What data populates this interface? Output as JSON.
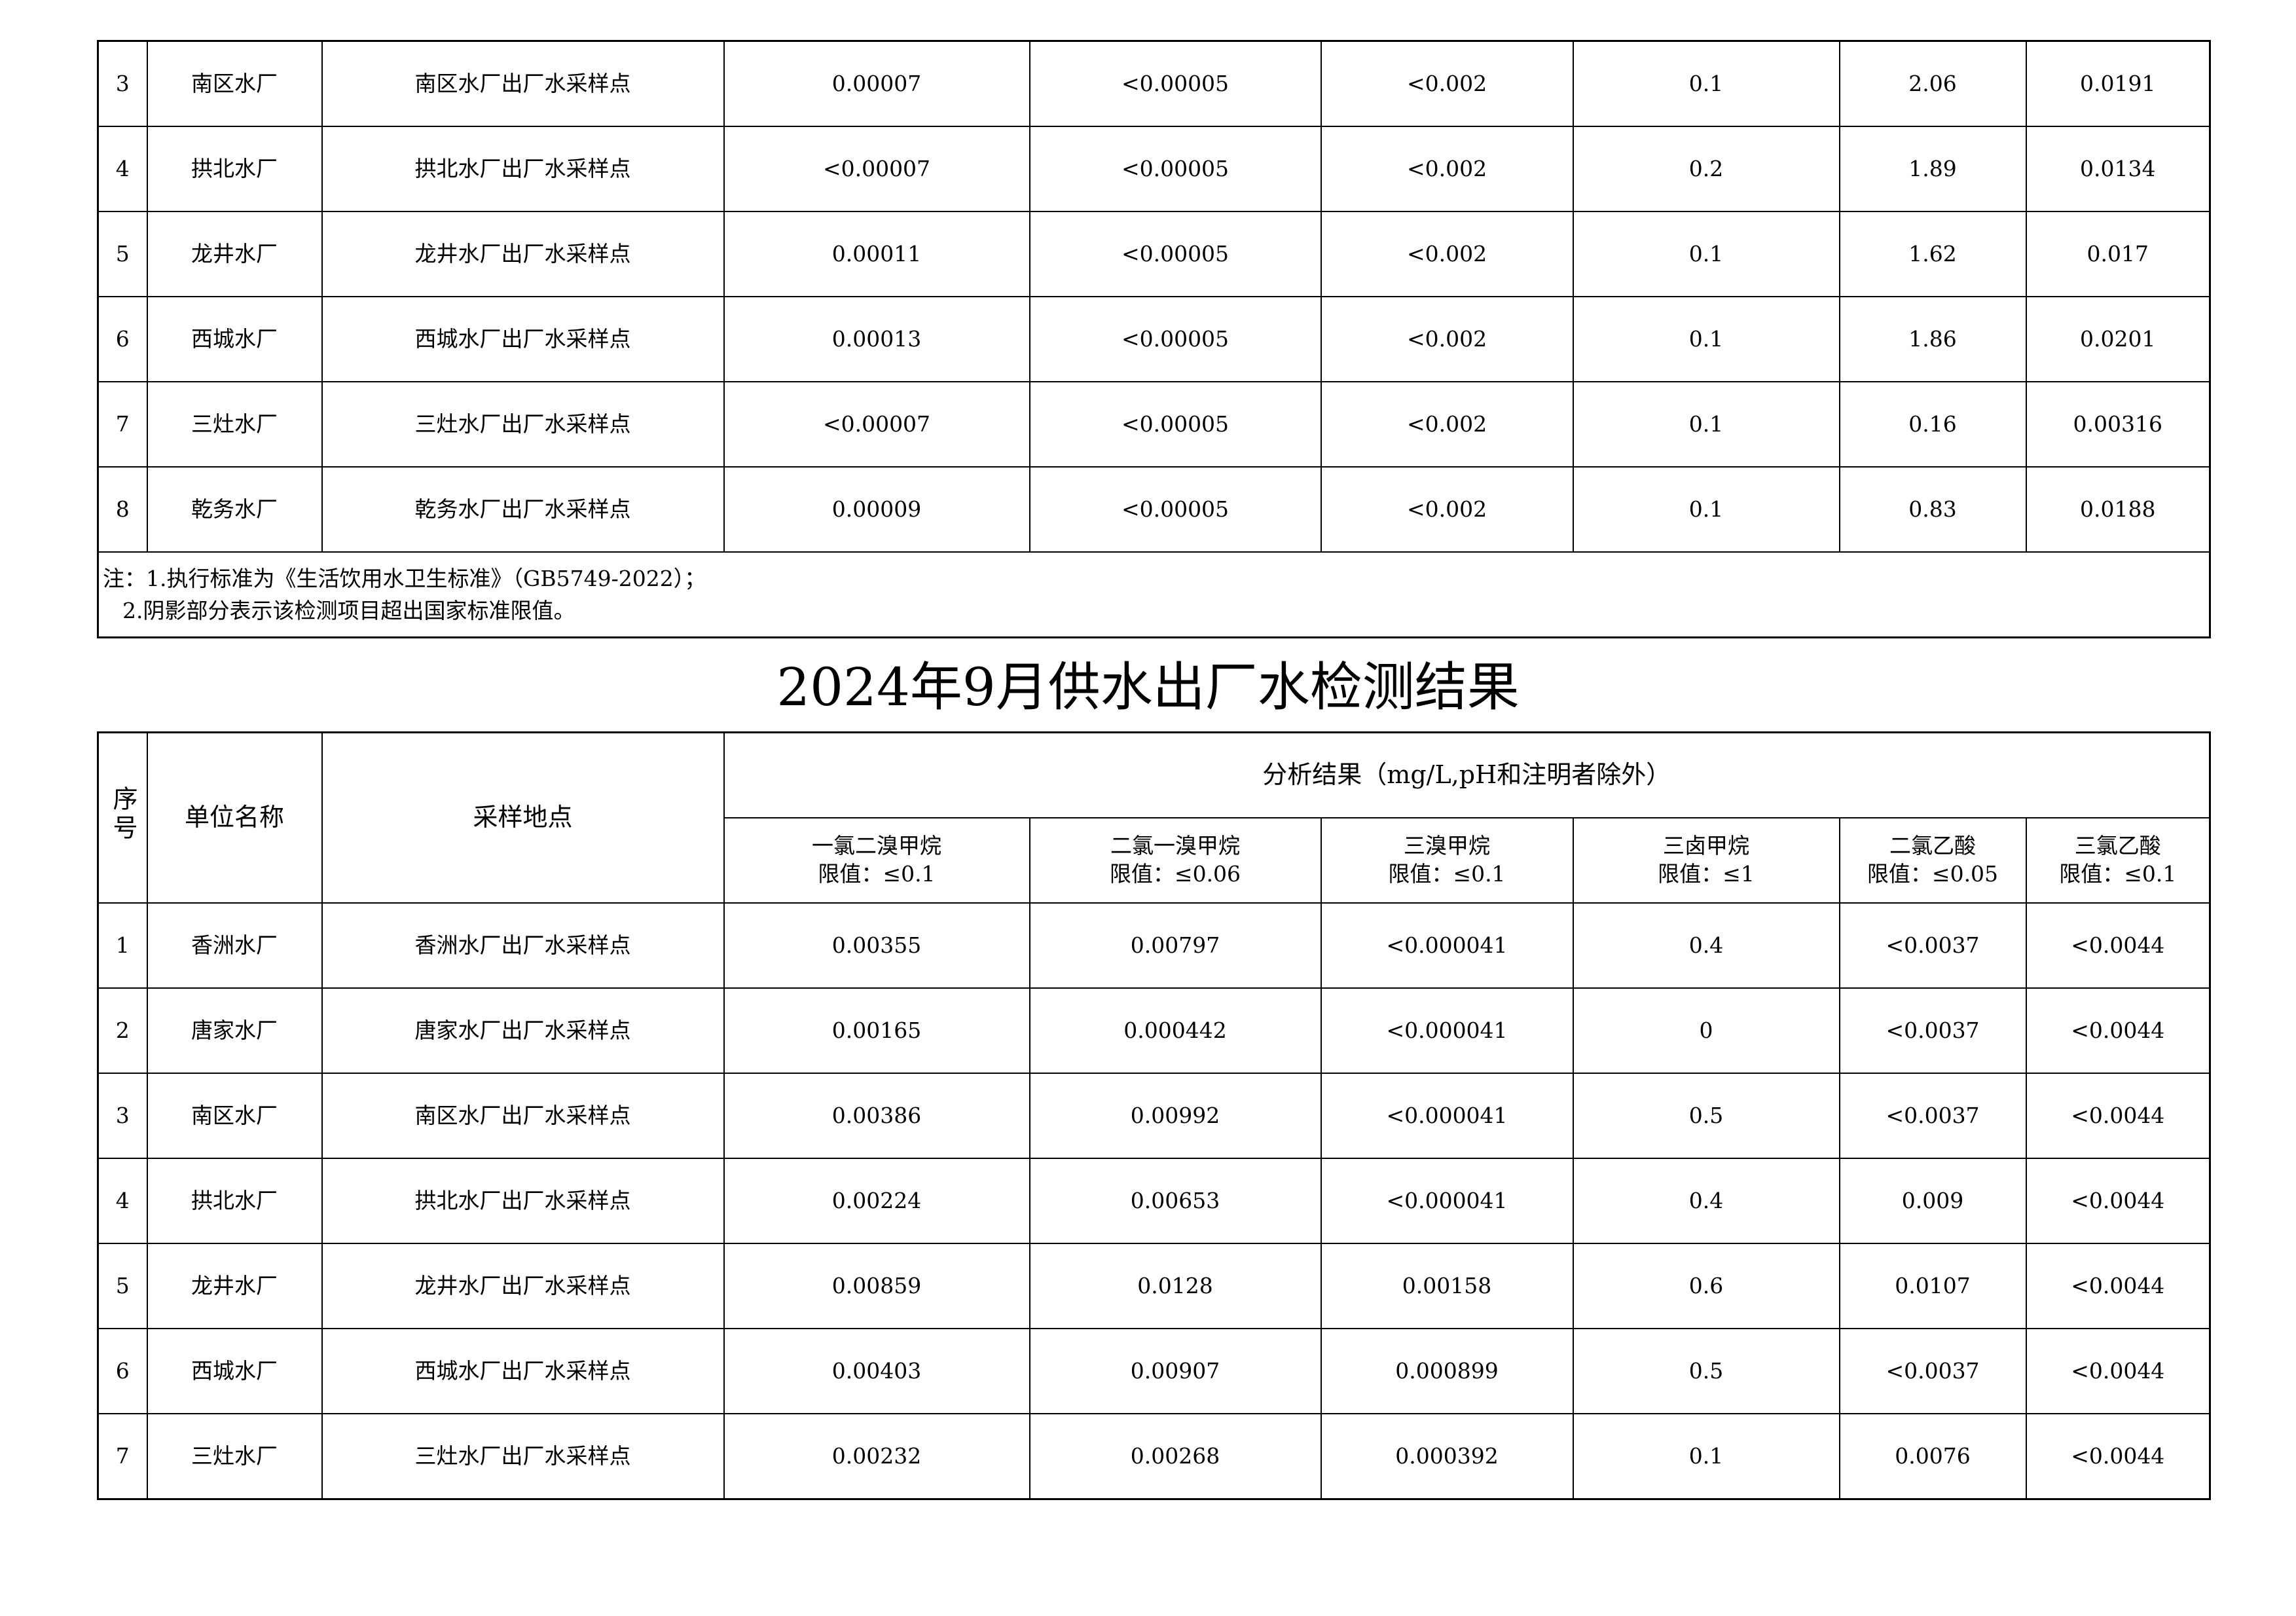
{
  "table_prev": {
    "rows": [
      [
        "3",
        "南区水厂",
        "南区水厂出厂水采样点",
        "0.00007",
        "<0.00005",
        "<0.002",
        "0.1",
        "2.06",
        "0.0191"
      ],
      [
        "4",
        "拱北水厂",
        "拱北水厂出厂水采样点",
        "<0.00007",
        "<0.00005",
        "<0.002",
        "0.2",
        "1.89",
        "0.0134"
      ],
      [
        "5",
        "龙井水厂",
        "龙井水厂出厂水采样点",
        "0.00011",
        "<0.00005",
        "<0.002",
        "0.1",
        "1.62",
        "0.017"
      ],
      [
        "6",
        "西城水厂",
        "西城水厂出厂水采样点",
        "0.00013",
        "<0.00005",
        "<0.002",
        "0.1",
        "1.86",
        "0.0201"
      ],
      [
        "7",
        "三灶水厂",
        "三灶水厂出厂水采样点",
        "<0.00007",
        "<0.00005",
        "<0.002",
        "0.1",
        "0.16",
        "0.00316"
      ],
      [
        "8",
        "乾务水厂",
        "乾务水厂出厂水采样点",
        "0.00009",
        "<0.00005",
        "<0.002",
        "0.1",
        "0.83",
        "0.0188"
      ]
    ],
    "note_line1": "注：1.执行标准为《生活饮用水卫生标准》（GB5749-2022）；",
    "note_line2": "2.阴影部分表示该检测项目超出国家标准限值。"
  },
  "title": "2024年9月供水出厂水检测结果",
  "table": {
    "header": {
      "seq": "序号",
      "unit": "单位名称",
      "site": "采样地点",
      "group": "分析结果（mg/L,pH和注明者除外）",
      "columns": [
        {
          "name": "一氯二溴甲烷",
          "limit": "限值：≤0.1"
        },
        {
          "name": "二氯一溴甲烷",
          "limit": "限值：≤0.06"
        },
        {
          "name": "三溴甲烷",
          "limit": "限值：≤0.1"
        },
        {
          "name": "三卤甲烷",
          "limit": "限值：≤1"
        },
        {
          "name": "二氯乙酸",
          "limit": "限值：≤0.05"
        },
        {
          "name": "三氯乙酸",
          "limit": "限值：≤0.1"
        }
      ]
    },
    "rows": [
      [
        "1",
        "香洲水厂",
        "香洲水厂出厂水采样点",
        "0.00355",
        "0.00797",
        "<0.000041",
        "0.4",
        "<0.0037",
        "<0.0044"
      ],
      [
        "2",
        "唐家水厂",
        "唐家水厂出厂水采样点",
        "0.00165",
        "0.000442",
        "<0.000041",
        "0",
        "<0.0037",
        "<0.0044"
      ],
      [
        "3",
        "南区水厂",
        "南区水厂出厂水采样点",
        "0.00386",
        "0.00992",
        "<0.000041",
        "0.5",
        "<0.0037",
        "<0.0044"
      ],
      [
        "4",
        "拱北水厂",
        "拱北水厂出厂水采样点",
        "0.00224",
        "0.00653",
        "<0.000041",
        "0.4",
        "0.009",
        "<0.0044"
      ],
      [
        "5",
        "龙井水厂",
        "龙井水厂出厂水采样点",
        "0.00859",
        "0.0128",
        "0.00158",
        "0.6",
        "0.0107",
        "<0.0044"
      ],
      [
        "6",
        "西城水厂",
        "西城水厂出厂水采样点",
        "0.00403",
        "0.00907",
        "0.000899",
        "0.5",
        "<0.0037",
        "<0.0044"
      ],
      [
        "7",
        "三灶水厂",
        "三灶水厂出厂水采样点",
        "0.00232",
        "0.00268",
        "0.000392",
        "0.1",
        "0.0076",
        "<0.0044"
      ]
    ]
  }
}
